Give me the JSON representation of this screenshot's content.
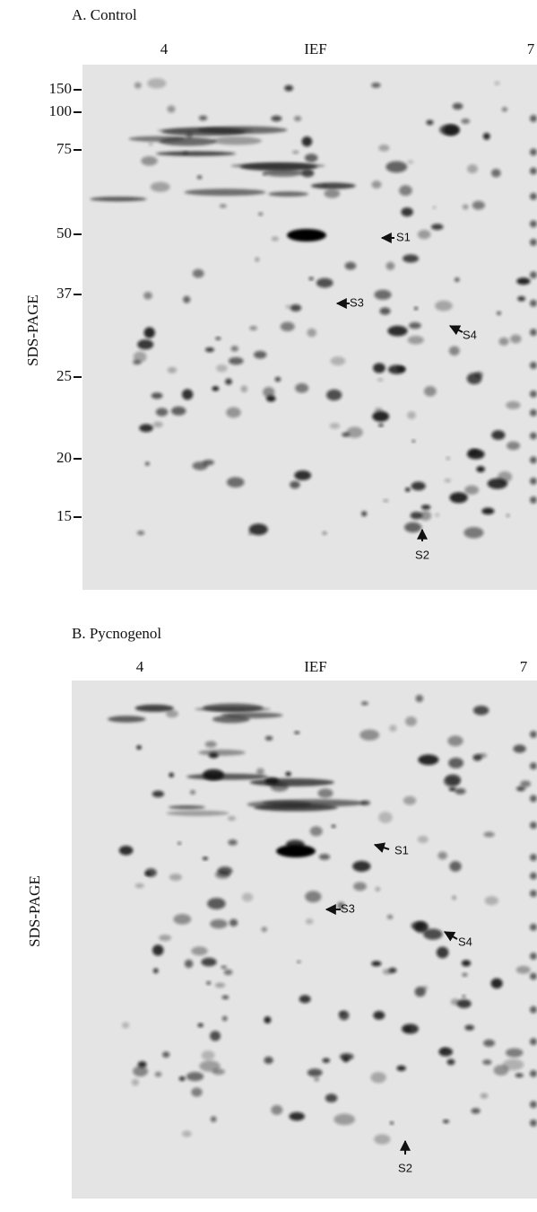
{
  "panels": [
    {
      "title": "A. Control",
      "x_label": "IEF",
      "x_ticks": [
        "4",
        "7"
      ],
      "y_label": "SDS-PAGE",
      "mw_ticks": [
        "150",
        "100",
        "75",
        "50",
        "37",
        "25",
        "20",
        "15"
      ],
      "spot_labels": [
        "S1",
        "S2",
        "S3",
        "S4"
      ]
    },
    {
      "title": "B. Pycnogenol",
      "x_label": "IEF",
      "x_ticks": [
        "4",
        "7"
      ],
      "y_label": "SDS-PAGE",
      "spot_labels": [
        "S1",
        "S2",
        "S3",
        "S4"
      ]
    }
  ]
}
